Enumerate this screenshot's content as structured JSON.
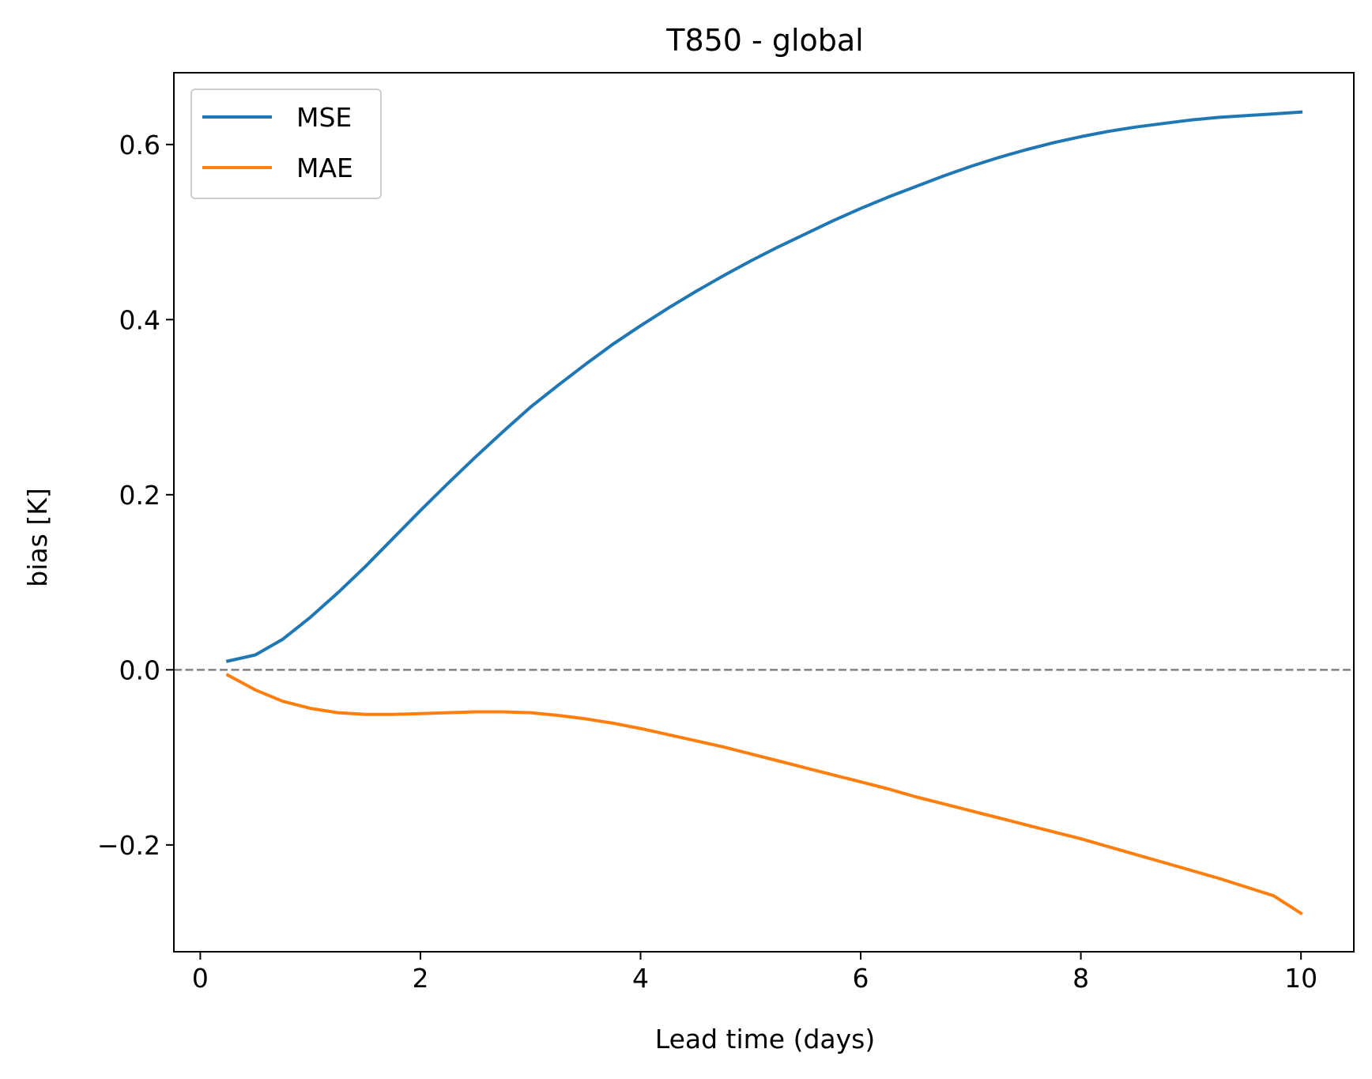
{
  "chart_data": {
    "type": "line",
    "title": "T850 - global",
    "xlabel": "Lead time (days)",
    "ylabel": "bias [K]",
    "xlim": [
      -0.24,
      10.48
    ],
    "ylim": [
      -0.322,
      0.682
    ],
    "xticks": [
      0,
      2,
      4,
      6,
      8,
      10
    ],
    "xtick_labels": [
      "0",
      "2",
      "4",
      "6",
      "8",
      "10"
    ],
    "yticks": [
      -0.2,
      0.0,
      0.2,
      0.4,
      0.6
    ],
    "ytick_labels": [
      "−0.2",
      "0.0",
      "0.2",
      "0.4",
      "0.6"
    ],
    "grid": false,
    "legend_position": "upper-left",
    "reference_line": {
      "y": 0.0,
      "style": "dashed",
      "color": "#808080"
    },
    "x": [
      0.25,
      0.5,
      0.75,
      1.0,
      1.25,
      1.5,
      1.75,
      2.0,
      2.25,
      2.5,
      2.75,
      3.0,
      3.25,
      3.5,
      3.75,
      4.0,
      4.25,
      4.5,
      4.75,
      5.0,
      5.25,
      5.5,
      5.75,
      6.0,
      6.25,
      6.5,
      6.75,
      7.0,
      7.25,
      7.5,
      7.75,
      8.0,
      8.25,
      8.5,
      8.75,
      9.0,
      9.25,
      9.5,
      9.75,
      10.0
    ],
    "series": [
      {
        "name": "MSE",
        "color": "#1f77b4",
        "values": [
          0.01,
          0.017,
          0.035,
          0.06,
          0.088,
          0.118,
          0.15,
          0.182,
          0.213,
          0.243,
          0.272,
          0.3,
          0.325,
          0.349,
          0.372,
          0.393,
          0.413,
          0.432,
          0.45,
          0.467,
          0.483,
          0.498,
          0.513,
          0.527,
          0.54,
          0.552,
          0.564,
          0.575,
          0.585,
          0.594,
          0.602,
          0.609,
          0.615,
          0.62,
          0.624,
          0.628,
          0.631,
          0.633,
          0.635,
          0.637
        ]
      },
      {
        "name": "MAE",
        "color": "#ff7f0e",
        "values": [
          -0.006,
          -0.023,
          -0.036,
          -0.044,
          -0.049,
          -0.051,
          -0.051,
          -0.05,
          -0.049,
          -0.048,
          -0.048,
          -0.049,
          -0.052,
          -0.056,
          -0.061,
          -0.067,
          -0.074,
          -0.081,
          -0.088,
          -0.096,
          -0.104,
          -0.112,
          -0.12,
          -0.128,
          -0.136,
          -0.145,
          -0.153,
          -0.161,
          -0.169,
          -0.177,
          -0.185,
          -0.193,
          -0.202,
          -0.211,
          -0.22,
          -0.229,
          -0.238,
          -0.248,
          -0.258,
          -0.278
        ]
      }
    ]
  }
}
